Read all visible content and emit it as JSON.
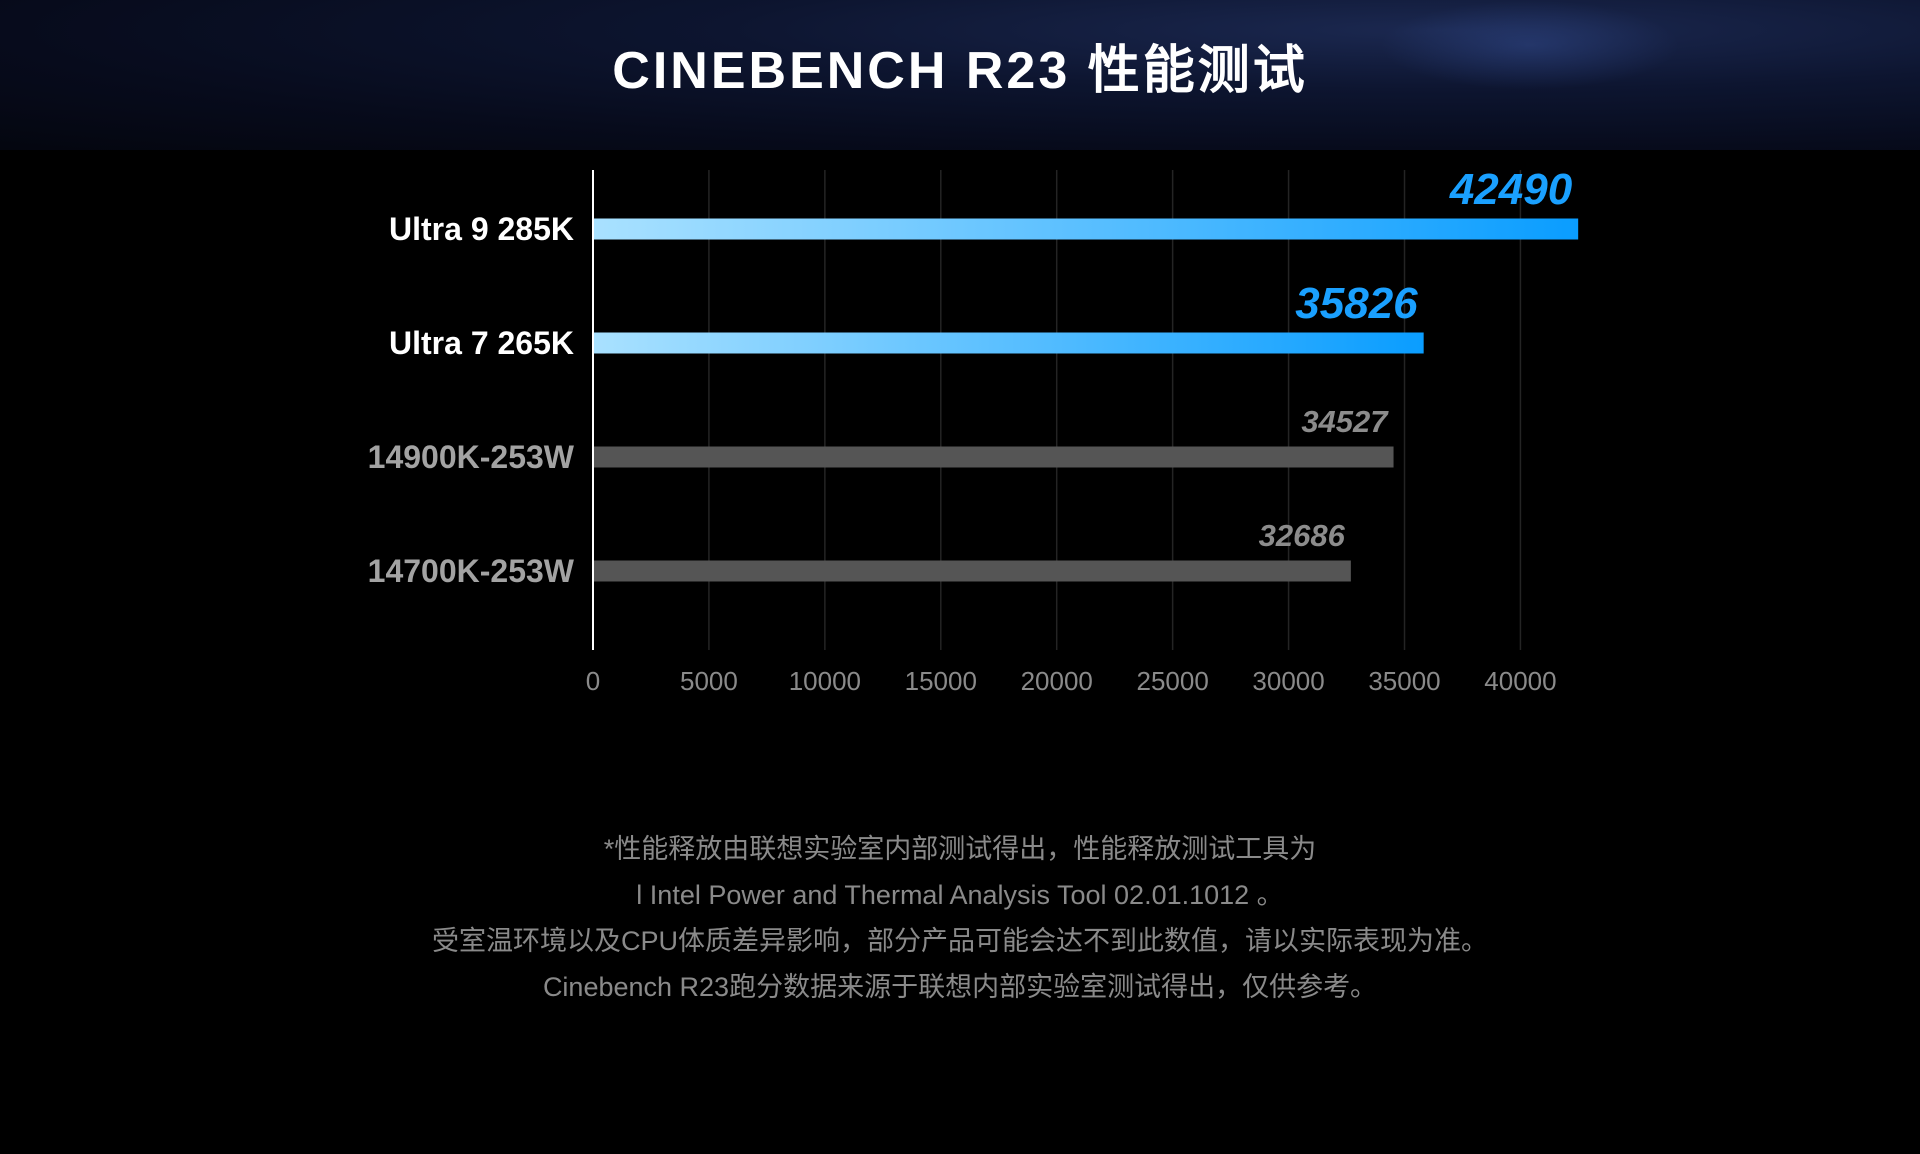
{
  "title": "CINEBENCH R23 性能测试",
  "chart_data": {
    "type": "bar",
    "orientation": "horizontal",
    "categories": [
      "Ultra 9 285K",
      "Ultra 7 265K",
      "14900K-253W",
      "14700K-253W"
    ],
    "values": [
      42490,
      35826,
      34527,
      32686
    ],
    "data_labels": [
      "42490",
      "35826",
      "34527",
      "32686"
    ],
    "highlight": [
      true,
      true,
      false,
      false
    ],
    "xticks": [
      0,
      5000,
      10000,
      15000,
      20000,
      25000,
      30000,
      35000,
      40000
    ],
    "xlim": [
      0,
      43000
    ],
    "grid": true,
    "colors": {
      "highlight_start": "#a9e1ff",
      "highlight_end": "#0a9dff",
      "highlight_label": "#1aa0ff",
      "muted_bar": "#555555",
      "muted_label": "#8c8c8c",
      "grid": "#242424"
    }
  },
  "notes": [
    "*性能释放由联想实验室内部测试得出，性能释放测试工具为",
    "l Intel Power and Thermal Analysis Tool 02.01.1012 。",
    "受室温环境以及CPU体质差异影响，部分产品可能会达不到此数值，请以实际表现为准。",
    "Cinebench R23跑分数据来源于联想内部实验室测试得出，仅供参考。"
  ]
}
